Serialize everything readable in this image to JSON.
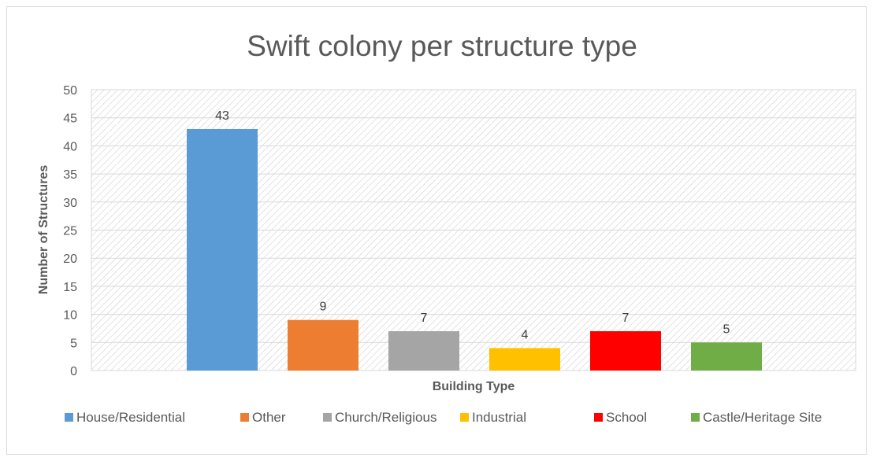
{
  "chart_data": {
    "type": "bar",
    "title": "Swift colony per structure type",
    "xlabel": "Building Type",
    "ylabel": "Number of Structures",
    "categories": [
      "House/Residential",
      "Other",
      "Church/Religious",
      "Industrial",
      "School",
      "Castle/Heritage Site"
    ],
    "values": [
      43,
      9,
      7,
      4,
      7,
      5
    ],
    "colors": [
      "#5b9bd5",
      "#ed7d31",
      "#a5a5a5",
      "#ffc000",
      "#ff0000",
      "#70ad47"
    ],
    "ylim": [
      0,
      50
    ],
    "yticks": [
      "0",
      "5",
      "10",
      "15",
      "20",
      "25",
      "30",
      "35",
      "40",
      "45",
      "50"
    ],
    "ytick_values": [
      0,
      5,
      10,
      15,
      20,
      25,
      30,
      35,
      40,
      45,
      50
    ],
    "grid": true,
    "legend_position": "bottom",
    "data_labels": [
      "43",
      "9",
      "7",
      "4",
      "7",
      "5"
    ]
  }
}
